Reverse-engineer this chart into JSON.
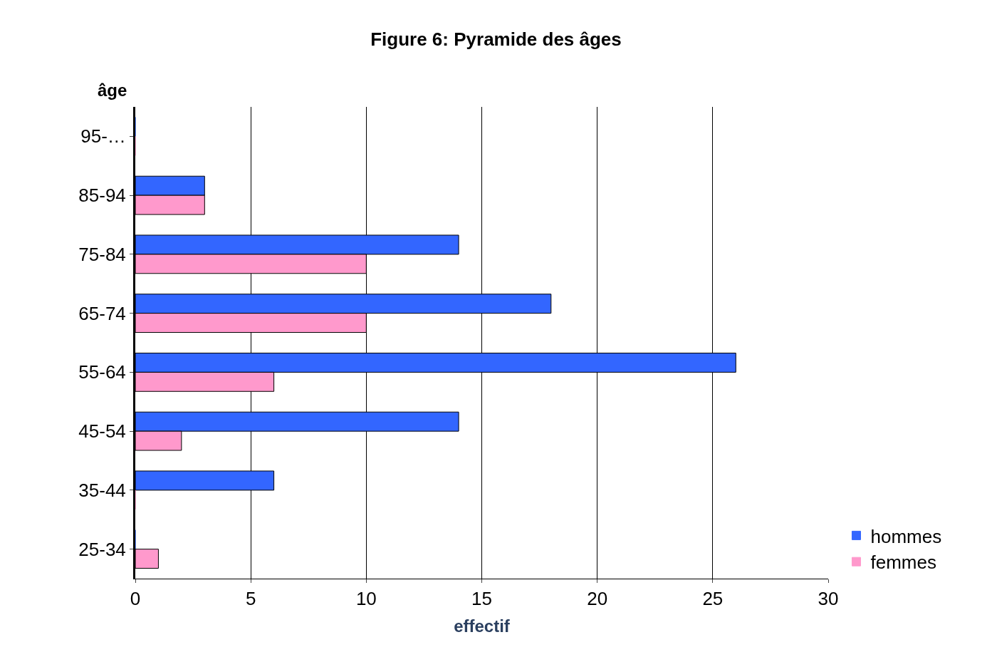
{
  "chart_data": {
    "type": "bar",
    "orientation": "horizontal",
    "title": "Figure 6: Pyramide des âges",
    "xlabel": "effectif",
    "ylabel": "âge",
    "categories": [
      "95-…",
      "85-94",
      "75-84",
      "65-74",
      "55-64",
      "45-54",
      "35-44",
      "25-34"
    ],
    "series": [
      {
        "name": "hommes",
        "color": "#3366ff",
        "values": [
          0,
          3,
          14,
          18,
          26,
          14,
          6,
          0
        ]
      },
      {
        "name": "femmes",
        "color": "#ff99cc",
        "values": [
          0,
          3,
          10,
          10,
          6,
          2,
          0,
          1
        ]
      }
    ],
    "xlim": [
      0,
      30
    ],
    "xticks": [
      0,
      5,
      10,
      15,
      20,
      25,
      30
    ],
    "grid": "x",
    "legend": "bottom right"
  }
}
